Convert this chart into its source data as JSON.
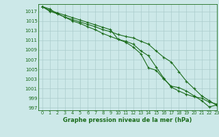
{
  "xlabel": "Graphe pression niveau de la mer (hPa)",
  "bg_color": "#cce8e8",
  "grid_color": "#aacccc",
  "line_color": "#1a6b1a",
  "xlim": [
    -0.5,
    23
  ],
  "ylim": [
    996.5,
    1018.5
  ],
  "xticks": [
    0,
    1,
    2,
    3,
    4,
    5,
    6,
    7,
    8,
    9,
    10,
    11,
    12,
    13,
    14,
    15,
    16,
    17,
    18,
    19,
    20,
    21,
    22,
    23
  ],
  "yticks": [
    997,
    999,
    1001,
    1003,
    1005,
    1007,
    1009,
    1011,
    1013,
    1015,
    1017
  ],
  "series": [
    {
      "x": [
        0,
        1,
        2,
        3,
        4,
        5,
        6,
        7,
        8,
        9,
        10,
        11,
        12,
        13,
        14,
        15,
        16,
        17,
        18,
        19,
        20,
        21,
        22,
        23
      ],
      "y": [
        1018.0,
        1017.2,
        1016.7,
        1016.2,
        1015.7,
        1015.2,
        1014.7,
        1014.2,
        1013.7,
        1013.2,
        1011.2,
        1010.6,
        1009.6,
        1008.2,
        1005.3,
        1004.8,
        1003.0,
        1001.5,
        1001.2,
        1000.5,
        999.5,
        998.5,
        997.2,
        997.6
      ]
    },
    {
      "x": [
        0,
        1,
        2,
        3,
        4,
        5,
        6,
        7,
        8,
        9,
        10,
        11,
        12,
        13,
        14,
        15,
        16,
        17,
        18,
        19,
        20,
        21,
        22,
        23
      ],
      "y": [
        1018.0,
        1017.5,
        1016.5,
        1015.8,
        1015.0,
        1014.5,
        1013.8,
        1013.2,
        1012.4,
        1011.8,
        1011.2,
        1010.8,
        1010.2,
        1008.8,
        1007.8,
        1005.5,
        1003.2,
        1001.3,
        1000.5,
        999.8,
        999.3,
        999.0,
        998.2,
        997.8
      ]
    },
    {
      "x": [
        0,
        1,
        2,
        3,
        4,
        5,
        6,
        7,
        8,
        9,
        10,
        11,
        12,
        13,
        14,
        15,
        16,
        17,
        18,
        19,
        20,
        21,
        22,
        23
      ],
      "y": [
        1018.0,
        1017.0,
        1016.5,
        1015.8,
        1015.3,
        1014.8,
        1014.3,
        1013.8,
        1013.2,
        1012.8,
        1012.2,
        1011.8,
        1011.5,
        1010.8,
        1010.2,
        1008.8,
        1007.5,
        1006.5,
        1004.5,
        1002.5,
        1001.0,
        999.5,
        998.5,
        997.5
      ]
    }
  ]
}
